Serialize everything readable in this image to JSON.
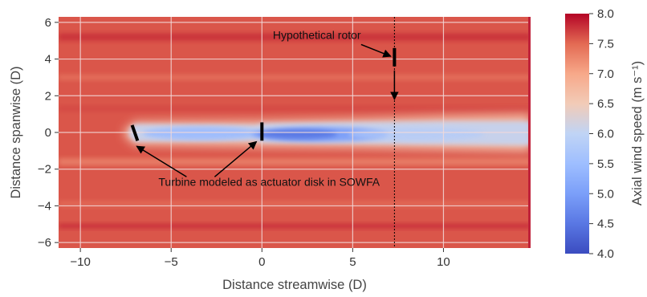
{
  "chart_data": {
    "type": "heatmap",
    "title": "",
    "xlabel": "Distance streamwise (D)",
    "ylabel": "Distance spanwise (D)",
    "xlim": [
      -11.2,
      14.8
    ],
    "ylim": [
      -6.3,
      6.3
    ],
    "x_ticks": [
      -10,
      -5,
      0,
      5,
      10
    ],
    "y_ticks": [
      -6,
      -4,
      -2,
      0,
      2,
      4,
      6
    ],
    "grid": true,
    "colorbar": {
      "label": "Axial wind speed (m s⁻¹)",
      "min": 4.0,
      "max": 8.0,
      "colormap": "coolwarm",
      "ticks": [
        "4.0",
        "4.5",
        "5.0",
        "5.5",
        "6.0",
        "6.5",
        "7.0",
        "7.5",
        "8.0"
      ]
    },
    "freestream_speed": 7.6,
    "turbines": [
      {
        "x": -7.0,
        "y_from": -0.45,
        "y_to": 0.4
      },
      {
        "x": 0.0,
        "y_from": -0.45,
        "y_to": 0.55
      }
    ],
    "hypothetical_rotor": {
      "x": 7.3,
      "y_from": 3.6,
      "y_to": 4.6
    },
    "annotations": [
      {
        "text": "Hypothetical rotor",
        "text_x": 0.6,
        "text_y": 5.1,
        "arrows_to": [
          [
            7.1,
            4.15
          ]
        ]
      },
      {
        "text": "Turbine modeled as actuator disk in SOWFA",
        "text_x": -5.7,
        "text_y": -2.9,
        "arrows_to": [
          [
            -6.9,
            -0.75
          ],
          [
            -0.3,
            -0.5
          ]
        ]
      }
    ],
    "vertical_dotted_line_x": 7.3,
    "colors": {
      "low": "#3b4cc0",
      "mid": "#dddddd",
      "high": "#b40426",
      "background_field": "#d06a6c",
      "grid": "#f2d9d9",
      "marks": "#000000"
    }
  }
}
